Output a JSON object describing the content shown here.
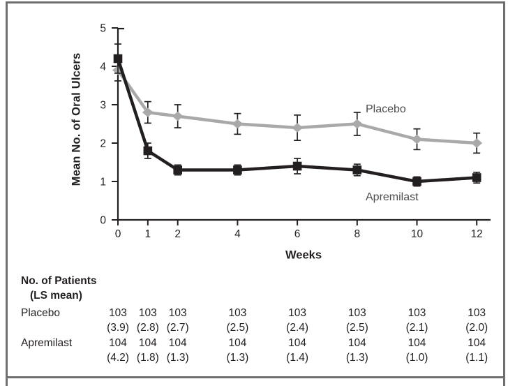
{
  "colors": {
    "ink": "#231f20",
    "placebo_gray": "#a9a9a9",
    "frame_gray": "#6f6f6f",
    "series_label_gray": "#4d4d4d"
  },
  "chart_data": {
    "type": "line",
    "title": "",
    "xlabel": "Weeks",
    "ylabel": "Mean No. of Oral Ulcers",
    "x": [
      0,
      1,
      2,
      4,
      6,
      8,
      10,
      12
    ],
    "x_ticks": [
      0,
      1,
      2,
      4,
      6,
      8,
      10,
      12
    ],
    "y_ticks": [
      0,
      1,
      2,
      3,
      4,
      5
    ],
    "xlim": [
      0,
      12.5
    ],
    "ylim": [
      0,
      5
    ],
    "grid": false,
    "legend": "inline-labels",
    "series": [
      {
        "name": "Placebo",
        "marker": "diamond",
        "color": "#a9a9a9",
        "values": [
          3.9,
          2.8,
          2.7,
          2.5,
          2.4,
          2.5,
          2.1,
          2.0
        ],
        "errors": [
          0.28,
          0.28,
          0.3,
          0.27,
          0.33,
          0.3,
          0.27,
          0.26
        ]
      },
      {
        "name": "Apremilast",
        "marker": "square",
        "color": "#231f20",
        "values": [
          4.2,
          1.8,
          1.3,
          1.3,
          1.4,
          1.3,
          1.0,
          1.1
        ],
        "errors": [
          0.38,
          0.2,
          0.13,
          0.13,
          0.2,
          0.15,
          0.12,
          0.14
        ]
      }
    ]
  },
  "table": {
    "header_line1": "No. of Patients",
    "header_line2": "(LS mean)",
    "weeks": [
      0,
      1,
      2,
      4,
      6,
      8,
      10,
      12
    ],
    "rows": [
      {
        "label": "Placebo",
        "counts": [
          "103",
          "103",
          "103",
          "103",
          "103",
          "103",
          "103",
          "103"
        ],
        "ls_means": [
          "(3.9)",
          "(2.8)",
          "(2.7)",
          "(2.5)",
          "(2.4)",
          "(2.5)",
          "(2.1)",
          "(2.0)"
        ]
      },
      {
        "label": "Apremilast",
        "counts": [
          "104",
          "104",
          "104",
          "104",
          "104",
          "104",
          "104",
          "104"
        ],
        "ls_means": [
          "(4.2)",
          "(1.8)",
          "(1.3)",
          "(1.3)",
          "(1.4)",
          "(1.3)",
          "(1.0)",
          "(1.1)"
        ]
      }
    ]
  }
}
